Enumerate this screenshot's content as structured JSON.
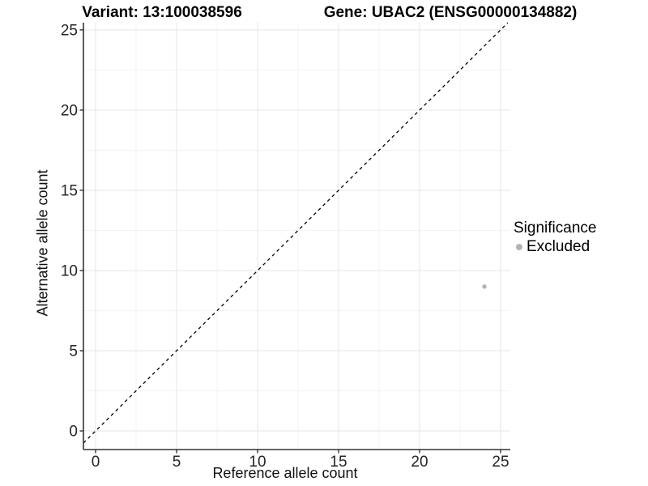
{
  "chart_data": {
    "type": "scatter",
    "title_left": "Variant: 13:100038596",
    "title_right": "Gene: UBAC2 (ENSG00000134882)",
    "xlabel": "Reference allele count",
    "ylabel": "Alternative allele count",
    "xlim": [
      -0.75,
      25.6
    ],
    "ylim": [
      -1.16,
      25.45
    ],
    "x_ticks": [
      0,
      5,
      10,
      15,
      20,
      25
    ],
    "y_ticks": [
      0,
      5,
      10,
      15,
      20,
      25
    ],
    "x_minor_ticks": [
      2.5,
      7.5,
      12.5,
      17.5,
      22.5
    ],
    "y_minor_ticks": [
      2.5,
      7.5,
      12.5,
      17.5,
      22.5
    ],
    "grid": "major and minor, light gray on white",
    "identity_line": {
      "equation": "y = x",
      "style": "dashed",
      "color": "#000000"
    },
    "points": [
      {
        "x": 24,
        "y": 9,
        "significance": "Excluded"
      }
    ],
    "legend": {
      "title": "Significance",
      "position": "right",
      "items": [
        {
          "label": "Excluded",
          "color": "#b3b3b3"
        }
      ]
    },
    "colors": {
      "point": "#b3b3b3",
      "grid_major": "#e6e6e6",
      "grid_minor": "#f3f3f3",
      "axis": "#333333"
    }
  }
}
